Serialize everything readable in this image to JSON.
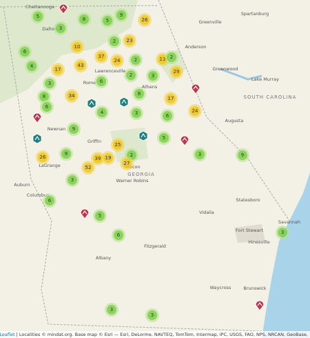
{
  "map": {
    "clusters": [
      5,
      8,
      5,
      9,
      26,
      3,
      2,
      23,
      6,
      10,
      37,
      24,
      2,
      13,
      2,
      4,
      17,
      43,
      29,
      2,
      3,
      6,
      3,
      34,
      8,
      17,
      8,
      6,
      4,
      3,
      24,
      6,
      9,
      5,
      25,
      3,
      9,
      9,
      26,
      39,
      19,
      2,
      27,
      52,
      3,
      6,
      5,
      6,
      3,
      3,
      3
    ],
    "places": [
      "Chattanooga",
      "Spartanburg",
      "Greenville",
      "Anderson",
      "Greenwood",
      "Lawrenceville",
      "Athens",
      "Rome",
      "Newnan",
      "Griffin",
      "Augusta",
      "Macon",
      "Warner Robins",
      "Statesboro",
      "Vidalia",
      "Columbus",
      "Savannah",
      "Hinesville",
      "Fort Stewart",
      "Albany",
      "Fitzgerald",
      "Waycross",
      "Brunswick",
      "Auburn",
      "LaGrange",
      "Lake Murray",
      "Dalton"
    ],
    "states": [
      "GEORGIA",
      "SOUTH CAROLINA"
    ],
    "attribution": {
      "link": "Leaflet",
      "text": "| Localities © mindat.org. Base map © Esri — Esri, DeLorme, NAVTEQ, TomTom, Intermap, iPC, USGS, FAO, NPS, NRCAN, GeoBase,"
    }
  }
}
